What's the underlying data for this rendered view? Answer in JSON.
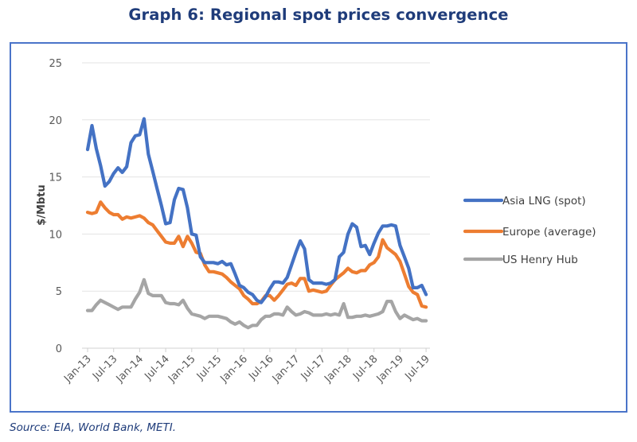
{
  "title": "Graph 6: Regional spot prices convergence",
  "source": "Source: EIA, World Bank, METI.",
  "chart_data": {
    "type": "line",
    "title": "Graph 6: Regional spot prices convergence",
    "xlabel": "",
    "ylabel": "$/Mbtu",
    "ylim": [
      0,
      25
    ],
    "yticks": [
      0,
      5,
      10,
      15,
      20,
      25
    ],
    "grid": true,
    "legend_position": "right",
    "x_start": "Jan-13",
    "x_frequency": "monthly",
    "xtick_labels": [
      "Jan-13",
      "Jul-13",
      "Jan-14",
      "Jul-14",
      "Jan-15",
      "Jul-15",
      "Jan-16",
      "Jul-16",
      "Jan-17",
      "Jul-17",
      "Jan-18",
      "Jul-18",
      "Jan-19",
      "Jul-19"
    ],
    "series": [
      {
        "name": "Asia LNG (spot)",
        "color": "#4472c4",
        "values": [
          17.4,
          19.5,
          17.5,
          16.0,
          14.2,
          14.6,
          15.3,
          15.8,
          15.4,
          15.9,
          18.0,
          18.6,
          18.7,
          20.1,
          17.0,
          15.5,
          14.0,
          12.5,
          10.9,
          11.0,
          13.0,
          14.0,
          13.9,
          12.3,
          10.0,
          9.9,
          8.0,
          7.5,
          7.5,
          7.5,
          7.4,
          7.6,
          7.3,
          7.4,
          6.5,
          5.5,
          5.3,
          4.9,
          4.7,
          4.2,
          4.0,
          4.5,
          5.2,
          5.8,
          5.8,
          5.7,
          6.2,
          7.3,
          8.4,
          9.4,
          8.7,
          6.0,
          5.7,
          5.7,
          5.7,
          5.6,
          5.7,
          6.0,
          8.0,
          8.4,
          10.0,
          10.9,
          10.6,
          8.9,
          9.0,
          8.2,
          9.2,
          10.1,
          10.7,
          10.7,
          10.8,
          10.7,
          9.0,
          8.0,
          7.0,
          5.3,
          5.3,
          5.5,
          4.7
        ]
      },
      {
        "name": "Europe (average)",
        "color": "#ed7d31",
        "values": [
          11.9,
          11.8,
          11.9,
          12.8,
          12.3,
          11.9,
          11.7,
          11.7,
          11.3,
          11.5,
          11.4,
          11.5,
          11.6,
          11.4,
          11.0,
          10.8,
          10.3,
          9.8,
          9.3,
          9.2,
          9.2,
          9.8,
          8.9,
          9.8,
          9.2,
          8.4,
          8.3,
          7.3,
          6.7,
          6.7,
          6.6,
          6.5,
          6.2,
          5.8,
          5.5,
          5.2,
          4.6,
          4.3,
          3.9,
          3.9,
          4.1,
          4.6,
          4.6,
          4.2,
          4.6,
          5.1,
          5.6,
          5.7,
          5.5,
          6.1,
          6.1,
          5.0,
          5.1,
          5.0,
          4.9,
          5.0,
          5.5,
          6.0,
          6.3,
          6.6,
          7.0,
          6.7,
          6.6,
          6.8,
          6.8,
          7.3,
          7.5,
          8.0,
          9.5,
          8.8,
          8.5,
          8.2,
          7.6,
          6.5,
          5.4,
          4.9,
          4.7,
          3.7,
          3.6
        ]
      },
      {
        "name": "US Henry Hub",
        "color": "#a5a5a5",
        "values": [
          3.3,
          3.3,
          3.8,
          4.2,
          4.0,
          3.8,
          3.6,
          3.4,
          3.6,
          3.6,
          3.6,
          4.3,
          4.9,
          6.0,
          4.8,
          4.6,
          4.6,
          4.6,
          4.0,
          3.9,
          3.9,
          3.8,
          4.2,
          3.5,
          3.0,
          2.9,
          2.8,
          2.6,
          2.8,
          2.8,
          2.8,
          2.7,
          2.6,
          2.3,
          2.1,
          2.3,
          2.0,
          1.8,
          2.0,
          2.0,
          2.5,
          2.8,
          2.8,
          3.0,
          3.0,
          2.9,
          3.6,
          3.2,
          2.9,
          3.0,
          3.2,
          3.1,
          2.9,
          2.9,
          2.9,
          3.0,
          2.9,
          3.0,
          2.9,
          3.9,
          2.7,
          2.7,
          2.8,
          2.8,
          2.9,
          2.8,
          2.9,
          3.0,
          3.2,
          4.1,
          4.1,
          3.2,
          2.6,
          2.9,
          2.7,
          2.5,
          2.6,
          2.4,
          2.4
        ]
      }
    ]
  }
}
